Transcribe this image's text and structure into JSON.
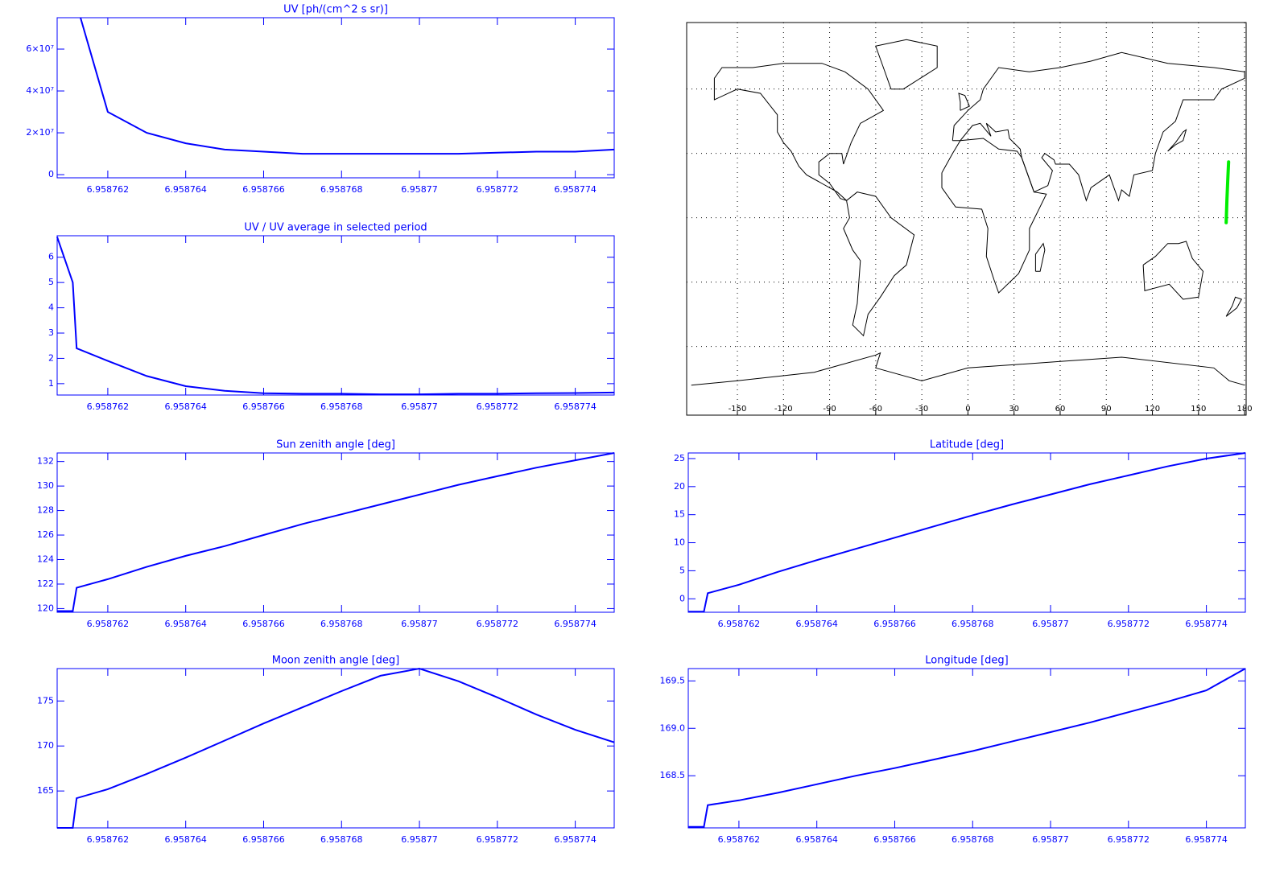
{
  "chart_data": [
    {
      "type": "line",
      "title": "UV [ph/(cm^2 s sr)]",
      "color": "#0000ff",
      "x": [
        6.9587607,
        6.9587612,
        6.9587613,
        6.958762,
        6.958763,
        6.958764,
        6.958765,
        6.958766,
        6.958767,
        6.958768,
        6.958769,
        6.95877,
        6.958771,
        6.958772,
        6.958773,
        6.958774,
        6.958775
      ],
      "values": [
        null,
        null,
        75000000,
        30000000,
        20000000,
        15000000,
        12000000,
        11000000,
        10000000,
        10000000,
        10000000,
        10000000,
        10000000,
        10500000,
        11000000,
        11000000,
        12000000
      ],
      "xlim": [
        6.9587607,
        6.958775
      ],
      "xticks": [
        6.958762,
        6.958764,
        6.958766,
        6.958768,
        6.95877,
        6.958772,
        6.958774
      ],
      "ylim": [
        -1500000,
        75000000
      ],
      "yticks": [
        0,
        {
          "value": 20000000,
          "label": "2×10⁷"
        },
        {
          "value": 40000000,
          "label": "4×10⁷"
        },
        {
          "value": 60000000,
          "label": "6×10⁷"
        }
      ]
    },
    {
      "type": "line",
      "title": "UV / UV average in selected period",
      "color": "#0000ff",
      "x": [
        6.9587607,
        6.9587611,
        6.9587612,
        6.958762,
        6.958763,
        6.958764,
        6.958765,
        6.958766,
        6.958767,
        6.958768,
        6.958769,
        6.95877,
        6.958771,
        6.958772,
        6.958773,
        6.958774,
        6.958775
      ],
      "values": [
        6.8,
        5.0,
        2.4,
        1.9,
        1.3,
        0.9,
        0.72,
        0.62,
        0.6,
        0.6,
        0.58,
        0.58,
        0.6,
        0.6,
        0.62,
        0.63,
        0.65
      ],
      "xlim": [
        6.9587607,
        6.958775
      ],
      "xticks": [
        6.958762,
        6.958764,
        6.958766,
        6.958768,
        6.95877,
        6.958772,
        6.958774
      ],
      "ylim": [
        0.55,
        6.85
      ],
      "yticks": [
        1,
        2,
        3,
        4,
        5,
        6
      ]
    },
    {
      "type": "map",
      "track_color": "#00ee00",
      "lon": [
        168.0,
        168.5,
        169.0,
        169.6
      ],
      "lat": [
        -2.3,
        8,
        17,
        26
      ],
      "xlim": [
        -183,
        181
      ],
      "xticks": [
        -150,
        -120,
        -90,
        -60,
        -30,
        0,
        30,
        60,
        90,
        120,
        150,
        180
      ],
      "ylim": [
        -92,
        91
      ],
      "ygrid": [
        -60,
        -30,
        0,
        30,
        60
      ]
    },
    {
      "type": "line",
      "title": "Sun zenith angle [deg]",
      "color": "#0000ff",
      "x": [
        6.9587607,
        6.9587611,
        6.9587612,
        6.958762,
        6.958763,
        6.958764,
        6.958765,
        6.958766,
        6.958767,
        6.958768,
        6.958769,
        6.95877,
        6.958771,
        6.958772,
        6.958773,
        6.958774,
        6.958775
      ],
      "values": [
        119.8,
        119.8,
        121.7,
        122.4,
        123.4,
        124.3,
        125.1,
        126.0,
        126.9,
        127.7,
        128.5,
        129.3,
        130.1,
        130.8,
        131.5,
        132.1,
        132.7
      ],
      "xlim": [
        6.9587607,
        6.958775
      ],
      "xticks": [
        6.958762,
        6.958764,
        6.958766,
        6.958768,
        6.95877,
        6.958772,
        6.958774
      ],
      "ylim": [
        119.7,
        132.7
      ],
      "yticks": [
        120,
        122,
        124,
        126,
        128,
        130,
        132
      ]
    },
    {
      "type": "line",
      "title": "Latitude [deg]",
      "color": "#0000ff",
      "x": [
        6.9587607,
        6.9587611,
        6.9587612,
        6.958762,
        6.958763,
        6.958764,
        6.958765,
        6.958766,
        6.958767,
        6.958768,
        6.958769,
        6.95877,
        6.958771,
        6.958772,
        6.958773,
        6.958774,
        6.958775
      ],
      "values": [
        -2.3,
        -2.3,
        1.0,
        2.5,
        4.8,
        6.9,
        8.9,
        10.9,
        12.9,
        14.9,
        16.8,
        18.6,
        20.4,
        22.0,
        23.6,
        25.0,
        26.0
      ],
      "xlim": [
        6.9587607,
        6.958775
      ],
      "xticks": [
        6.958762,
        6.958764,
        6.958766,
        6.958768,
        6.95877,
        6.958772,
        6.958774
      ],
      "ylim": [
        -2.4,
        26
      ],
      "yticks": [
        0,
        5,
        10,
        15,
        20,
        25
      ]
    },
    {
      "type": "line",
      "title": "Moon zenith angle [deg]",
      "color": "#0000ff",
      "x": [
        6.9587607,
        6.9587611,
        6.9587612,
        6.958762,
        6.958763,
        6.958764,
        6.958765,
        6.958766,
        6.958767,
        6.958768,
        6.958769,
        6.95877,
        6.958771,
        6.958772,
        6.958773,
        6.958774,
        6.958775
      ],
      "values": [
        160.9,
        160.9,
        164.2,
        165.2,
        166.9,
        168.7,
        170.6,
        172.5,
        174.3,
        176.1,
        177.8,
        178.6,
        177.2,
        175.4,
        173.5,
        171.8,
        170.4
      ],
      "xlim": [
        6.9587607,
        6.958775
      ],
      "xticks": [
        6.958762,
        6.958764,
        6.958766,
        6.958768,
        6.95877,
        6.958772,
        6.958774
      ],
      "ylim": [
        160.9,
        178.6
      ],
      "yticks": [
        165,
        170,
        175
      ]
    },
    {
      "type": "line",
      "title": "Longitude [deg]",
      "color": "#0000ff",
      "x": [
        6.9587607,
        6.9587611,
        6.9587612,
        6.958762,
        6.958763,
        6.958764,
        6.958765,
        6.958766,
        6.958767,
        6.958768,
        6.958769,
        6.95877,
        6.958771,
        6.958772,
        6.958773,
        6.958774,
        6.958775
      ],
      "values": [
        167.96,
        167.96,
        168.19,
        168.24,
        168.32,
        168.41,
        168.5,
        168.58,
        168.67,
        168.76,
        168.86,
        168.96,
        169.06,
        169.17,
        169.28,
        169.4,
        169.63
      ],
      "xlim": [
        6.9587607,
        6.958775
      ],
      "xticks": [
        6.958762,
        6.958764,
        6.958766,
        6.958768,
        6.95877,
        6.958772,
        6.958774
      ],
      "ylim": [
        167.95,
        169.63
      ],
      "yticks": [
        168.5,
        {
          "value": 169,
          "label": "169.0"
        },
        169.5
      ]
    }
  ]
}
